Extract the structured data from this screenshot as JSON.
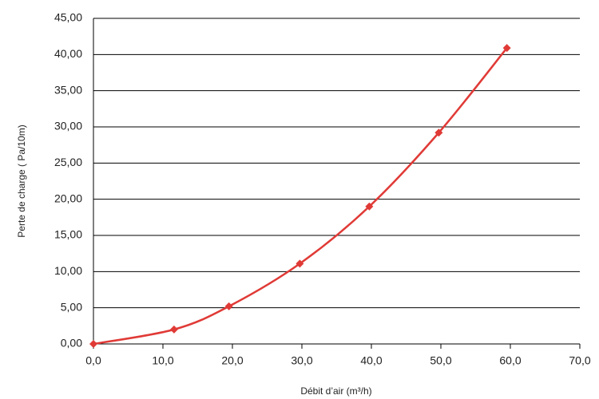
{
  "chart_data": {
    "type": "line",
    "x_label": "Débit d’air (m³/h)",
    "y_label": "Perte de charge ( Pa/10m)",
    "series": [
      {
        "color": "#e03a36",
        "x": [
          0,
          11.6,
          19.5,
          29.7,
          39.7,
          49.7,
          59.5
        ],
        "values": [
          0,
          2.0,
          5.2,
          11.1,
          19.0,
          29.2,
          40.9
        ]
      }
    ],
    "xlim": [
      0,
      70
    ],
    "xticks": [
      {
        "value": 0,
        "label": "0,0"
      },
      {
        "value": 10,
        "label": "10,0"
      },
      {
        "value": 20,
        "label": "20,0"
      },
      {
        "value": 30,
        "label": "30,0"
      },
      {
        "value": 40,
        "label": "40,0"
      },
      {
        "value": 50,
        "label": "50,0"
      },
      {
        "value": 60,
        "label": "60,0"
      },
      {
        "value": 70,
        "label": "70,0"
      }
    ],
    "ylim": [
      0,
      45
    ],
    "yticks": [
      {
        "value": 0,
        "label": "0,00"
      },
      {
        "value": 5,
        "label": "5,00"
      },
      {
        "value": 10,
        "label": "10,00"
      },
      {
        "value": 15,
        "label": "15,00"
      },
      {
        "value": 20,
        "label": "20,00"
      },
      {
        "value": 25,
        "label": "25,00"
      },
      {
        "value": 30,
        "label": "30,00"
      },
      {
        "value": 35,
        "label": "35,00"
      },
      {
        "value": 40,
        "label": "40,00"
      },
      {
        "value": 45,
        "label": "45,00"
      }
    ],
    "grid": true
  }
}
